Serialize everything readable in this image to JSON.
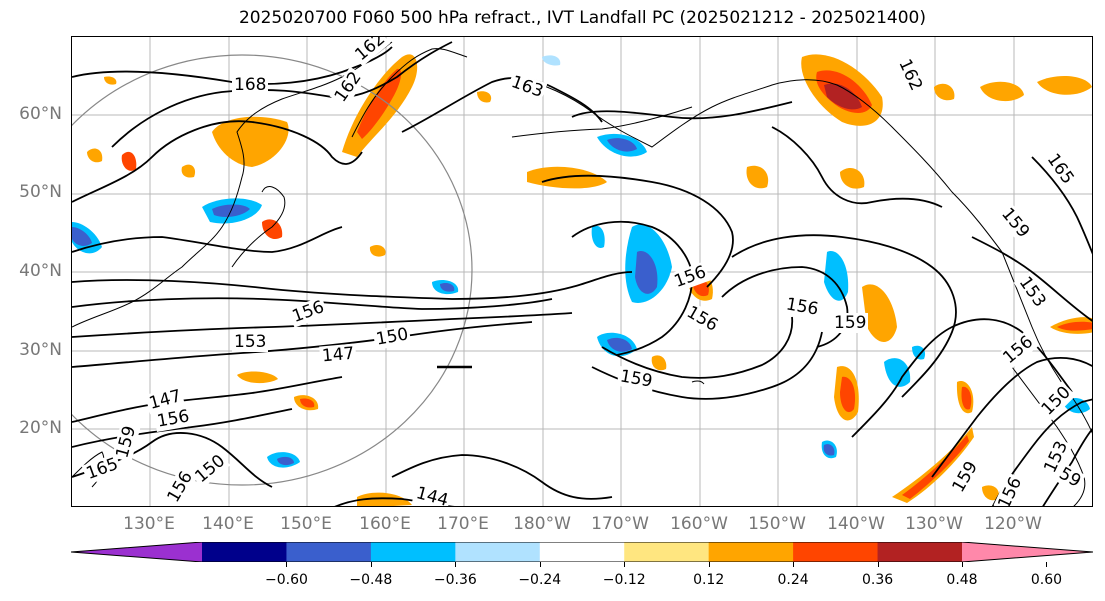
{
  "title": "2025020700 F060 500 hPa refract., IVT Landfall PC (2025021212 - 2025021400)",
  "lat_labels": [
    "60°N",
    "50°N",
    "40°N",
    "30°N",
    "20°N"
  ],
  "lon_labels": [
    "130°E",
    "140°E",
    "150°E",
    "160°E",
    "170°E",
    "180°W",
    "170°W",
    "160°W",
    "150°W",
    "140°W",
    "130°W",
    "120°W"
  ],
  "contour_labels": [
    "168",
    "162",
    "162",
    "163",
    "162",
    "165",
    "159",
    "153",
    "156",
    "159",
    "156",
    "156",
    "153",
    "150",
    "147",
    "147",
    "156",
    "159",
    "159",
    "165",
    "150",
    "144",
    "159",
    "156",
    "150",
    "153",
    "156",
    "159",
    "156",
    "156"
  ],
  "colorbar": {
    "ticks": [
      "−0.60",
      "−0.48",
      "−0.36",
      "−0.24",
      "−0.12",
      "0.12",
      "0.24",
      "0.36",
      "0.48",
      "0.60"
    ],
    "colors": [
      "#9b30d0",
      "#00008b",
      "#3a5fcd",
      "#00bfff",
      "#b0e2ff",
      "#ffffff",
      "#ffe680",
      "#ffa500",
      "#ff4500",
      "#b22222",
      "#ff88aa"
    ],
    "extend": "both"
  },
  "shading_colors": {
    "neg_strong": "#3a5fcd",
    "neg_mid": "#00bfff",
    "neg_weak": "#b0e2ff",
    "pos_weak": "#ffe680",
    "pos_mid": "#ffa500",
    "pos_strong": "#ff4500",
    "pos_max": "#b22222"
  }
}
